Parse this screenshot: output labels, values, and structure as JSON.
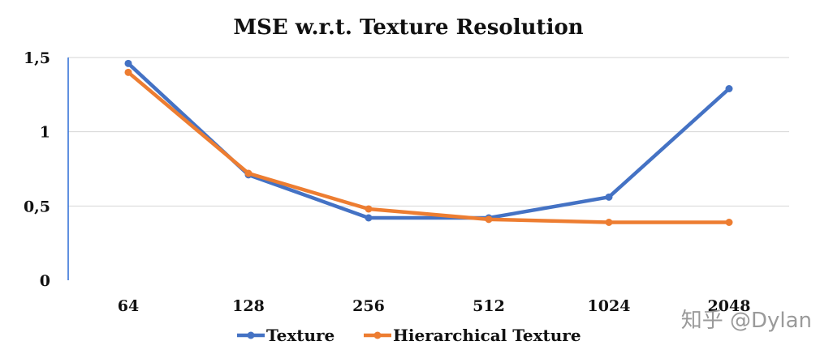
{
  "chart_data": {
    "type": "line",
    "title": "MSE w.r.t. Texture Resolution",
    "xlabel": "",
    "ylabel": "",
    "categories": [
      "64",
      "128",
      "256",
      "512",
      "1024",
      "2048"
    ],
    "ylim": [
      0,
      1.5
    ],
    "y_ticks": [
      0,
      0.5,
      1,
      1.5
    ],
    "y_tick_labels": [
      "0",
      "0,5",
      "1",
      "1,5"
    ],
    "grid": true,
    "legend_position": "bottom",
    "series": [
      {
        "name": "Texture",
        "color": "#4472C4",
        "values": [
          1.46,
          0.71,
          0.42,
          0.42,
          0.56,
          1.29
        ]
      },
      {
        "name": "Hierarchical Texture",
        "color": "#ED7D31",
        "values": [
          1.4,
          0.72,
          0.48,
          0.41,
          0.39,
          0.39
        ]
      }
    ]
  },
  "watermark": "知乎 @Dylan"
}
